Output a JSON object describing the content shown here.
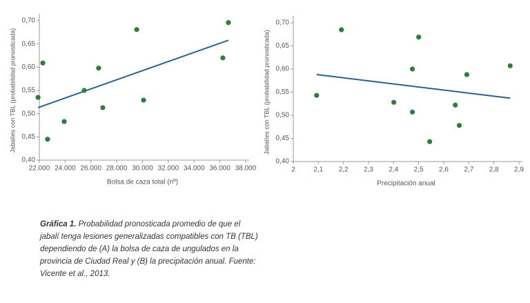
{
  "chart_data": [
    {
      "type": "scatter",
      "y_label": "Jabalíes con TBL (probabilidad pronosticada)",
      "x_label": "Bolsa de caza total (nº)",
      "x": [
        21900,
        22270,
        22640,
        23930,
        25480,
        26600,
        26920,
        29550,
        30080,
        36230,
        36660
      ],
      "y": [
        0.535,
        0.609,
        0.445,
        0.483,
        0.55,
        0.598,
        0.513,
        0.681,
        0.529,
        0.62,
        0.696
      ],
      "color": "#2e7d3e",
      "trend": {
        "x": [
          21900,
          36660
        ],
        "y": [
          0.513,
          0.658
        ],
        "color": "#2b5f8e"
      },
      "xlim": [
        22000,
        38000
      ],
      "ylim": [
        0.4,
        0.7
      ],
      "xticks": [
        {
          "value": 22000,
          "label": "22.000"
        },
        {
          "value": 24000,
          "label": "24.000"
        },
        {
          "value": 26000,
          "label": "26.000"
        },
        {
          "value": 28000,
          "label": "28.000"
        },
        {
          "value": 30000,
          "label": "30.000"
        },
        {
          "value": 32000,
          "label": "32.000"
        },
        {
          "value": 34000,
          "label": "34.000"
        },
        {
          "value": 36000,
          "label": "36.000"
        },
        {
          "value": 38000,
          "label": "38.000"
        }
      ],
      "yticks": [
        {
          "value": 0.4,
          "label": "0,40"
        },
        {
          "value": 0.45,
          "label": "0,45"
        },
        {
          "value": 0.5,
          "label": "0,50"
        },
        {
          "value": 0.55,
          "label": "0,55"
        },
        {
          "value": 0.6,
          "label": "0,60"
        },
        {
          "value": 0.65,
          "label": "0,65"
        },
        {
          "value": 0.7,
          "label": "0,70"
        }
      ]
    },
    {
      "type": "scatter",
      "y_label": "Jabalíes con TBL (probabilidad pronosticada)",
      "x_label": "Precipitación anual",
      "x": [
        2.093,
        2.192,
        2.401,
        2.5,
        2.475,
        2.475,
        2.544,
        2.646,
        2.662,
        2.692,
        2.865
      ],
      "y": [
        0.543,
        0.685,
        0.528,
        0.669,
        0.6,
        0.507,
        0.443,
        0.522,
        0.478,
        0.588,
        0.607
      ],
      "color": "#2e7d3e",
      "trend": {
        "x": [
          2.093,
          2.865
        ],
        "y": [
          0.588,
          0.537
        ],
        "color": "#2b5f8e"
      },
      "xlim": [
        2,
        2.9
      ],
      "ylim": [
        0.4,
        0.7
      ],
      "xticks": [
        2,
        {
          "value": 2.1,
          "label": "2,1"
        },
        {
          "value": 2.2,
          "label": "2,2"
        },
        {
          "value": 2.3,
          "label": "2,3"
        },
        {
          "value": 2.4,
          "label": "2,4"
        },
        {
          "value": 2.5,
          "label": "2,5"
        },
        {
          "value": 2.6,
          "label": "2,6"
        },
        {
          "value": 2.7,
          "label": "2,7"
        },
        {
          "value": 2.8,
          "label": "2,8"
        },
        {
          "value": 2.9,
          "label": "2,9"
        }
      ],
      "yticks": [
        {
          "value": 0.4,
          "label": "0,40"
        },
        {
          "value": 0.45,
          "label": "0,45"
        },
        {
          "value": 0.5,
          "label": "0,50"
        },
        {
          "value": 0.55,
          "label": "0,55"
        },
        {
          "value": 0.6,
          "label": "0,60"
        },
        {
          "value": 0.65,
          "label": "0,65"
        },
        {
          "value": 0.7,
          "label": "0,70"
        }
      ]
    }
  ],
  "caption": {
    "label": "Gráfica 1.",
    "lines": [
      " Probabilidad pronosticada promedio de que el",
      "jabalí tenga lesiones generalizadas compatibles con TB (TBL)",
      "dependiendo de (A) la bolsa de caza de ungulados en la",
      "provincia de Ciudad Real y (B) la precipitación anual. Fuente:",
      "Vicente et al., 2013."
    ]
  }
}
